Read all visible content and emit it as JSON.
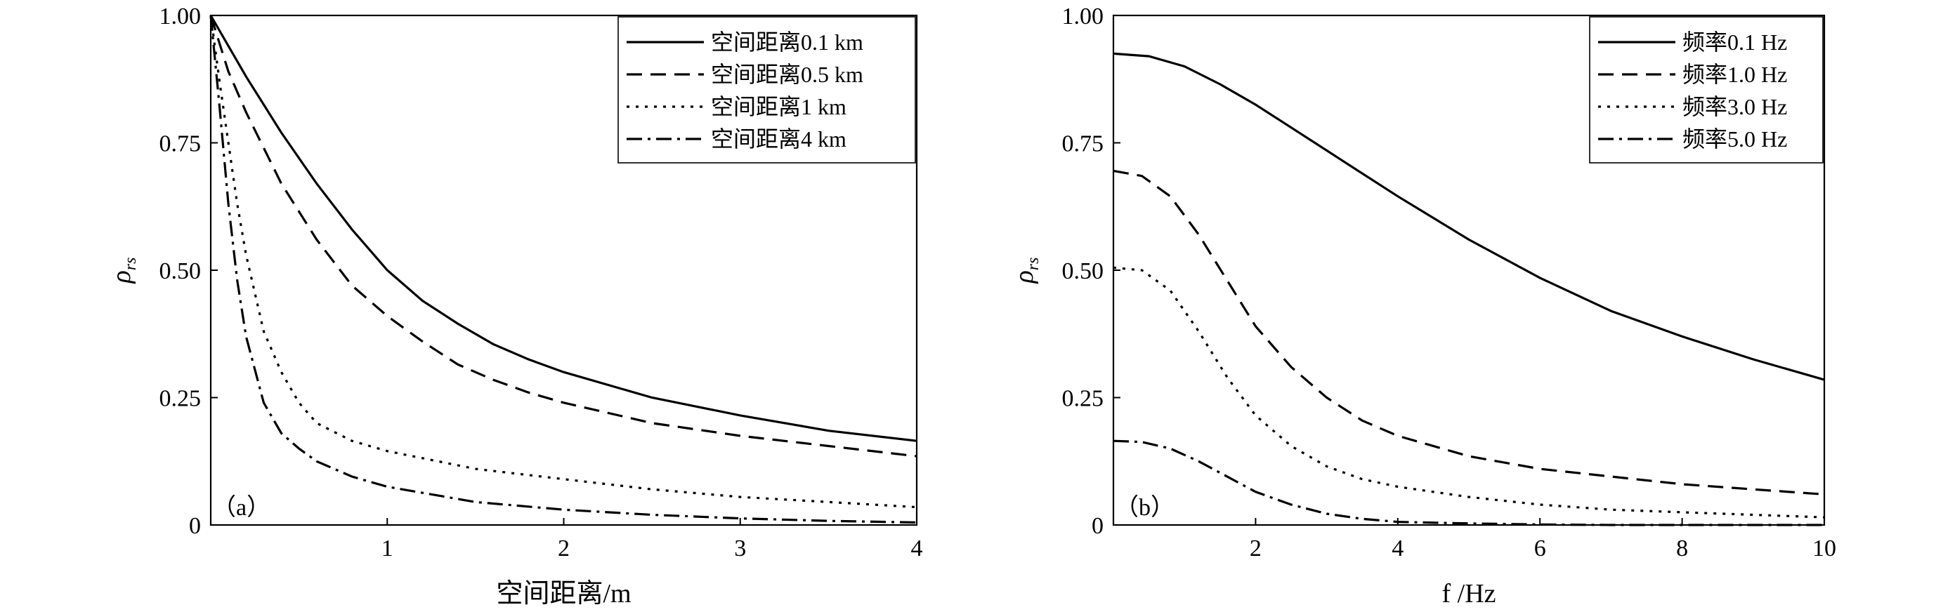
{
  "chart_data": [
    {
      "type": "line",
      "panel_label": "（a）",
      "xlabel": "空间距离/m",
      "ylabel": "ρ",
      "ylabel_sub": "rs",
      "xlim": [
        0,
        4
      ],
      "ylim": [
        0,
        1
      ],
      "xticks": [
        "1",
        "2",
        "3",
        "4"
      ],
      "yticks": [
        "0",
        "0.25",
        "0.50",
        "0.75",
        "1.00"
      ],
      "xtick_values": [
        1,
        2,
        3,
        4
      ],
      "ytick_values": [
        0,
        0.25,
        0.5,
        0.75,
        1.0
      ],
      "legend_position": "top-right",
      "series": [
        {
          "name": "空间距离0.1 km",
          "dash": "solid",
          "x": [
            0,
            0.2,
            0.4,
            0.6,
            0.8,
            1.0,
            1.2,
            1.4,
            1.6,
            1.8,
            2.0,
            2.5,
            3.0,
            3.5,
            4.0
          ],
          "y": [
            1.0,
            0.88,
            0.77,
            0.67,
            0.58,
            0.5,
            0.44,
            0.395,
            0.355,
            0.325,
            0.3,
            0.25,
            0.215,
            0.185,
            0.165
          ]
        },
        {
          "name": "空间距离0.5 km",
          "dash": "dashed",
          "x": [
            0,
            0.1,
            0.2,
            0.4,
            0.6,
            0.8,
            1.0,
            1.2,
            1.4,
            1.6,
            1.8,
            2.0,
            2.5,
            3.0,
            3.5,
            4.0
          ],
          "y": [
            1.0,
            0.89,
            0.81,
            0.67,
            0.56,
            0.47,
            0.41,
            0.36,
            0.315,
            0.285,
            0.26,
            0.24,
            0.2,
            0.175,
            0.155,
            0.135
          ]
        },
        {
          "name": "空间距离1 km",
          "dash": "dotted",
          "x": [
            0,
            0.05,
            0.1,
            0.15,
            0.2,
            0.3,
            0.4,
            0.5,
            0.6,
            0.8,
            1.0,
            1.5,
            2.0,
            2.5,
            3.0,
            3.5,
            4.0
          ],
          "y": [
            1.0,
            0.87,
            0.75,
            0.63,
            0.53,
            0.38,
            0.3,
            0.24,
            0.2,
            0.165,
            0.145,
            0.11,
            0.09,
            0.07,
            0.055,
            0.045,
            0.035
          ]
        },
        {
          "name": "空间距离4 km",
          "dash": "dashdot",
          "x": [
            0,
            0.05,
            0.1,
            0.15,
            0.2,
            0.3,
            0.4,
            0.5,
            0.6,
            0.8,
            1.0,
            1.5,
            2.0,
            2.5,
            3.0,
            3.5,
            4.0
          ],
          "y": [
            1.0,
            0.82,
            0.63,
            0.48,
            0.37,
            0.24,
            0.18,
            0.15,
            0.125,
            0.095,
            0.075,
            0.045,
            0.03,
            0.02,
            0.013,
            0.008,
            0.005
          ]
        }
      ]
    },
    {
      "type": "line",
      "panel_label": "（b）",
      "xlabel": "f /Hz",
      "ylabel": "ρ",
      "ylabel_sub": "rs",
      "xlim": [
        0,
        10
      ],
      "ylim": [
        0,
        1
      ],
      "xticks": [
        "2",
        "4",
        "6",
        "8",
        "10"
      ],
      "yticks": [
        "0",
        "0.25",
        "0.50",
        "0.75",
        "1.00"
      ],
      "xtick_values": [
        2,
        4,
        6,
        8,
        10
      ],
      "ytick_values": [
        0,
        0.25,
        0.5,
        0.75,
        1.0
      ],
      "legend_position": "top-right",
      "series": [
        {
          "name": "频率0.1 Hz",
          "dash": "solid",
          "x": [
            0,
            0.5,
            1.0,
            1.5,
            2.0,
            2.5,
            3.0,
            3.5,
            4.0,
            5.0,
            6.0,
            7.0,
            8.0,
            9.0,
            10.0
          ],
          "y": [
            0.925,
            0.92,
            0.9,
            0.865,
            0.825,
            0.78,
            0.735,
            0.69,
            0.645,
            0.56,
            0.485,
            0.42,
            0.37,
            0.325,
            0.285
          ]
        },
        {
          "name": "频率1.0 Hz",
          "dash": "dashed",
          "x": [
            0,
            0.4,
            0.8,
            1.2,
            1.6,
            2.0,
            2.5,
            3.0,
            3.5,
            4.0,
            5.0,
            6.0,
            7.0,
            8.0,
            9.0,
            10.0
          ],
          "y": [
            0.695,
            0.685,
            0.645,
            0.57,
            0.48,
            0.39,
            0.31,
            0.25,
            0.205,
            0.175,
            0.135,
            0.11,
            0.095,
            0.08,
            0.07,
            0.06
          ]
        },
        {
          "name": "频率3.0 Hz",
          "dash": "dotted",
          "x": [
            0,
            0.4,
            0.8,
            1.2,
            1.6,
            2.0,
            2.5,
            3.0,
            3.5,
            4.0,
            5.0,
            6.0,
            7.0,
            8.0,
            9.0,
            10.0
          ],
          "y": [
            0.505,
            0.5,
            0.46,
            0.38,
            0.29,
            0.215,
            0.155,
            0.115,
            0.09,
            0.075,
            0.055,
            0.04,
            0.03,
            0.025,
            0.02,
            0.015
          ]
        },
        {
          "name": "频率5.0 Hz",
          "dash": "dashdot",
          "x": [
            0,
            0.4,
            0.8,
            1.2,
            1.6,
            2.0,
            2.5,
            3.0,
            3.5,
            4.0,
            5.0,
            6.0,
            7.0,
            8.0,
            9.0,
            10.0
          ],
          "y": [
            0.165,
            0.163,
            0.15,
            0.125,
            0.095,
            0.065,
            0.04,
            0.022,
            0.012,
            0.006,
            0.003,
            0.001,
            0.0,
            0.0,
            0.0,
            0.0
          ]
        }
      ]
    }
  ]
}
